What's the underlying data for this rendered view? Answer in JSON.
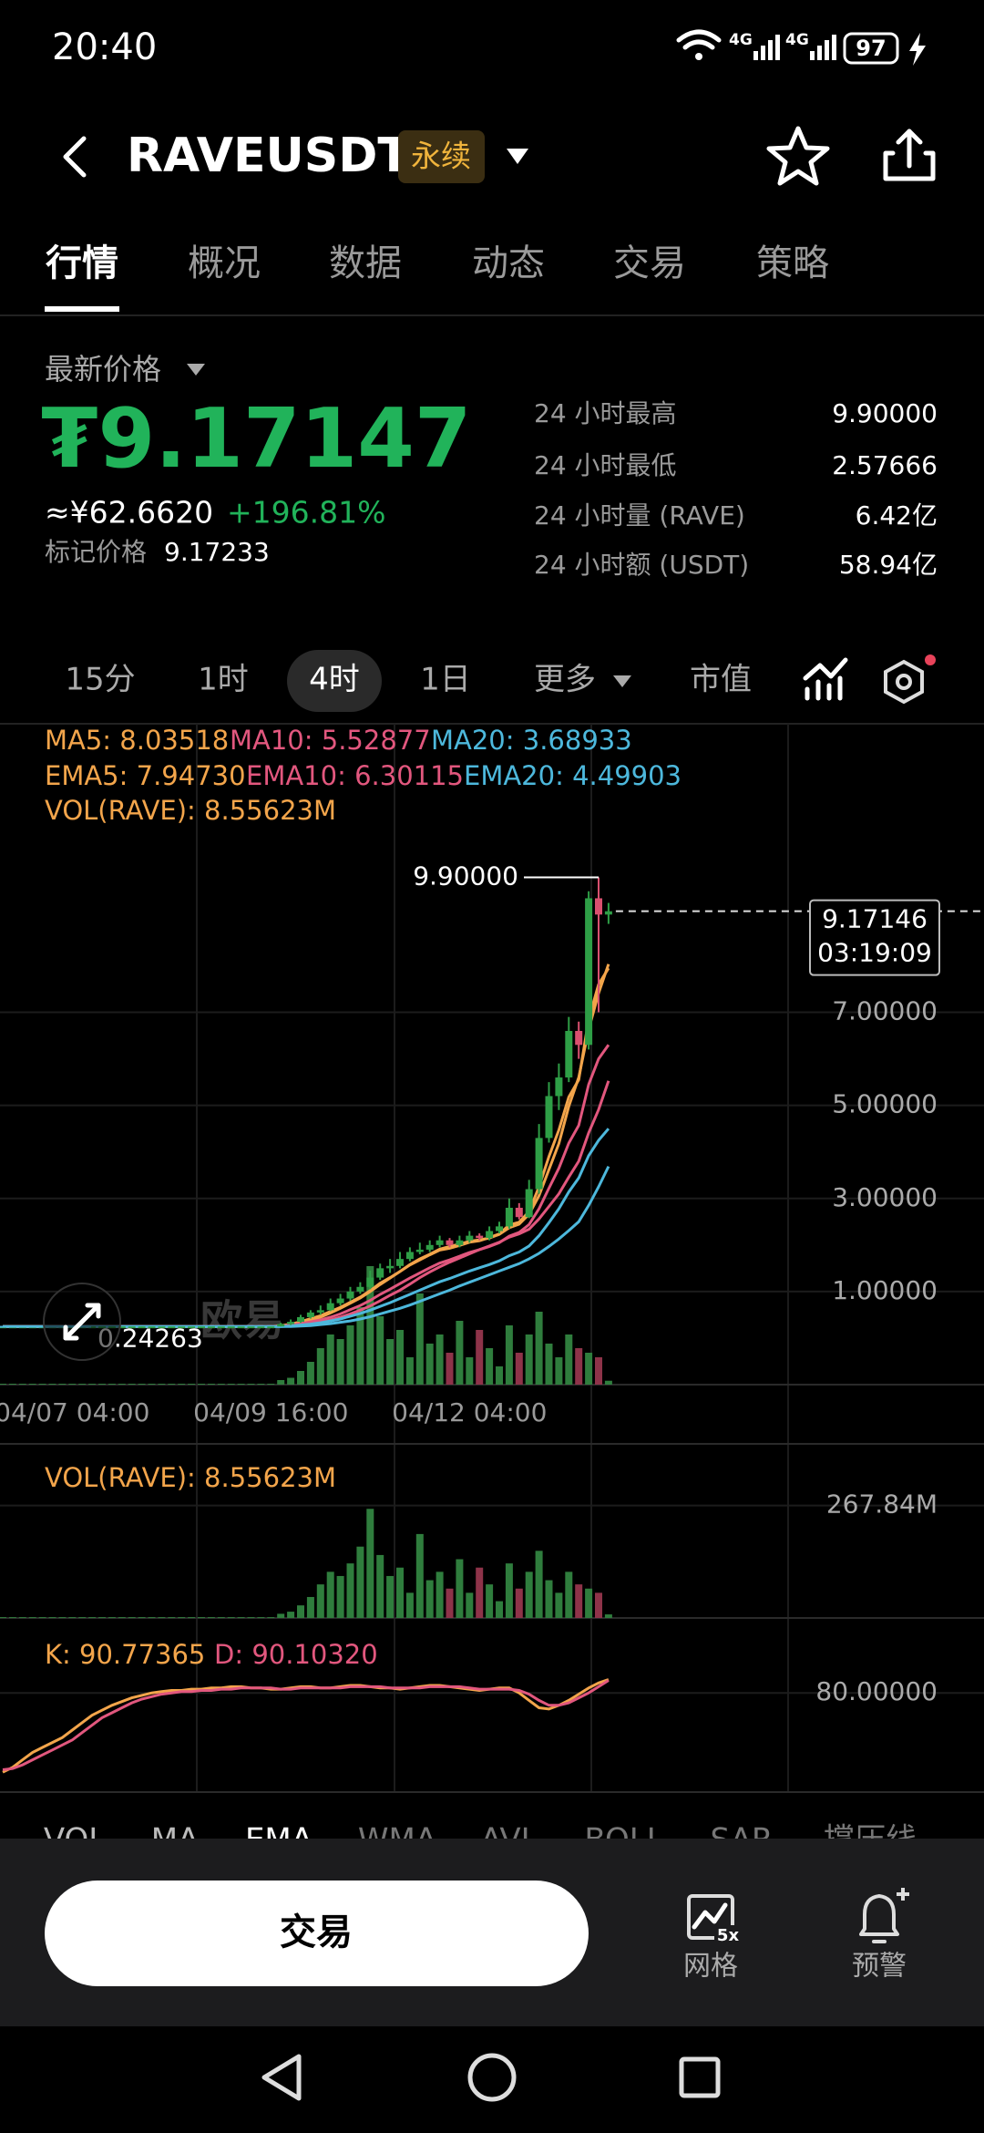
{
  "status_bar": {
    "time": "20:40",
    "network": [
      "4G",
      "4G"
    ],
    "battery": "97"
  },
  "header": {
    "symbol": "RAVEUSDT",
    "badge": "永续"
  },
  "tabs": [
    "行情",
    "概况",
    "数据",
    "动态",
    "交易",
    "策略"
  ],
  "price": {
    "label": "最新价格",
    "last": "₮9.17147",
    "cny": "≈¥62.6620",
    "change": "+196.81%",
    "mark_label": "标记价格",
    "mark": "9.17233"
  },
  "stats": [
    {
      "label": "24 小时最高",
      "value": "9.90000"
    },
    {
      "label": "24 小时最低",
      "value": "2.57666"
    },
    {
      "label": "24 小时量 (RAVE)",
      "value": "6.42亿"
    },
    {
      "label": "24 小时额 (USDT)",
      "value": "58.94亿"
    }
  ],
  "intervals": [
    "15分",
    "1时",
    "4时",
    "1日",
    "更多",
    "市值"
  ],
  "watermark": "欧易",
  "chart_data": [
    {
      "type": "candlestick",
      "up_color": "#2e9e46",
      "down_color": "#d9506f",
      "ylim": [
        -1,
        13.2
      ],
      "yticks": [
        {
          "value": 1,
          "label": "1.00000"
        },
        {
          "value": 3,
          "label": "3.00000"
        },
        {
          "value": 5,
          "label": "5.00000"
        },
        {
          "value": 7,
          "label": "7.00000"
        }
      ],
      "grid": true,
      "categories": [
        null,
        null,
        null,
        null,
        null,
        null,
        null,
        "04/07 04:00",
        null,
        null,
        null,
        null,
        null,
        null,
        null,
        null,
        null,
        null,
        null,
        null,
        null,
        null,
        null,
        null,
        null,
        null,
        null,
        "04/09 16:00",
        null,
        null,
        null,
        null,
        null,
        null,
        null,
        null,
        null,
        null,
        null,
        null,
        null,
        null,
        null,
        null,
        null,
        null,
        null,
        "04/12 04:00",
        null,
        null,
        null,
        null,
        null,
        null,
        null,
        null,
        null,
        null,
        null,
        null,
        null,
        null
      ],
      "ohlc": [
        [
          0.25,
          0.25,
          0.25,
          0.25
        ],
        [
          0.25,
          0.25,
          0.25,
          0.25
        ],
        [
          0.25,
          0.25,
          0.25,
          0.25
        ],
        [
          0.25,
          0.25,
          0.25,
          0.25
        ],
        [
          0.25,
          0.25,
          0.25,
          0.25
        ],
        [
          0.25,
          0.25,
          0.25,
          0.25
        ],
        [
          0.25,
          0.25,
          0.25,
          0.25
        ],
        [
          0.25,
          0.25,
          0.25,
          0.25
        ],
        [
          0.25,
          0.25,
          0.25,
          0.25
        ],
        [
          0.25,
          0.25,
          0.25,
          0.25
        ],
        [
          0.25,
          0.25,
          0.25,
          0.25
        ],
        [
          0.25,
          0.25,
          0.25,
          0.25
        ],
        [
          0.25,
          0.25,
          0.25,
          0.25
        ],
        [
          0.25,
          0.25,
          0.25,
          0.25
        ],
        [
          0.25,
          0.25,
          0.24263,
          0.25
        ],
        [
          0.25,
          0.25,
          0.25,
          0.25
        ],
        [
          0.25,
          0.25,
          0.25,
          0.25
        ],
        [
          0.25,
          0.25,
          0.25,
          0.25
        ],
        [
          0.25,
          0.25,
          0.25,
          0.25
        ],
        [
          0.25,
          0.25,
          0.25,
          0.25
        ],
        [
          0.25,
          0.25,
          0.25,
          0.25
        ],
        [
          0.25,
          0.25,
          0.25,
          0.25
        ],
        [
          0.25,
          0.25,
          0.25,
          0.25
        ],
        [
          0.25,
          0.25,
          0.25,
          0.25
        ],
        [
          0.25,
          0.25,
          0.25,
          0.25
        ],
        [
          0.25,
          0.25,
          0.25,
          0.25
        ],
        [
          0.25,
          0.25,
          0.25,
          0.25
        ],
        [
          0.25,
          0.25,
          0.25,
          0.25
        ],
        [
          0.25,
          0.33,
          0.25,
          0.3
        ],
        [
          0.3,
          0.4,
          0.28,
          0.35
        ],
        [
          0.35,
          0.5,
          0.33,
          0.45
        ],
        [
          0.45,
          0.6,
          0.42,
          0.55
        ],
        [
          0.55,
          0.7,
          0.5,
          0.6
        ],
        [
          0.6,
          0.85,
          0.58,
          0.75
        ],
        [
          0.75,
          0.95,
          0.7,
          0.85
        ],
        [
          0.85,
          1.1,
          0.8,
          1.0
        ],
        [
          1.0,
          1.2,
          0.95,
          1.1
        ],
        [
          1.1,
          1.45,
          1.05,
          1.3
        ],
        [
          1.3,
          1.6,
          1.25,
          1.5
        ],
        [
          1.5,
          1.7,
          1.4,
          1.55
        ],
        [
          1.55,
          1.85,
          1.5,
          1.7
        ],
        [
          1.7,
          1.95,
          1.65,
          1.85
        ],
        [
          1.85,
          2.05,
          1.8,
          1.9
        ],
        [
          1.9,
          2.1,
          1.85,
          2.0
        ],
        [
          2.0,
          2.2,
          1.95,
          2.1
        ],
        [
          2.1,
          2.15,
          1.95,
          2.0
        ],
        [
          2.0,
          2.2,
          1.95,
          2.1
        ],
        [
          2.1,
          2.3,
          2.05,
          2.2
        ],
        [
          2.2,
          2.25,
          2.1,
          2.15
        ],
        [
          2.15,
          2.4,
          2.1,
          2.3
        ],
        [
          2.3,
          2.5,
          2.25,
          2.4
        ],
        [
          2.4,
          3.0,
          2.35,
          2.8
        ],
        [
          2.8,
          2.9,
          2.55,
          2.6
        ],
        [
          2.6,
          3.4,
          2.57666,
          3.2
        ],
        [
          3.2,
          4.6,
          3.1,
          4.3
        ],
        [
          4.3,
          5.5,
          4.2,
          5.2
        ],
        [
          5.2,
          5.9,
          4.9,
          5.6
        ],
        [
          5.6,
          6.9,
          5.5,
          6.6
        ],
        [
          6.6,
          6.8,
          6.0,
          6.3
        ],
        [
          6.3,
          9.6,
          6.2,
          9.45
        ],
        [
          9.45,
          9.9,
          7.0,
          9.1
        ],
        [
          9.1,
          9.35,
          8.9,
          9.17146
        ]
      ],
      "series": [
        {
          "name": "MA5: 8.03518",
          "color": "#f3a54b",
          "values": [
            0.25,
            0.25,
            0.25,
            0.25,
            0.25,
            0.25,
            0.25,
            0.25,
            0.25,
            0.25,
            0.25,
            0.25,
            0.25,
            0.25,
            0.25,
            0.25,
            0.25,
            0.25,
            0.25,
            0.25,
            0.25,
            0.25,
            0.25,
            0.25,
            0.25,
            0.25,
            0.25,
            0.25,
            0.26,
            0.28,
            0.32,
            0.38,
            0.45,
            0.54,
            0.64,
            0.75,
            0.86,
            1.0,
            1.15,
            1.29,
            1.43,
            1.58,
            1.7,
            1.8,
            1.91,
            1.97,
            2.02,
            2.08,
            2.11,
            2.15,
            2.23,
            2.37,
            2.45,
            2.66,
            3.06,
            3.62,
            4.18,
            4.98,
            5.6,
            6.63,
            7.41,
            8.03518
          ]
        },
        {
          "name": "MA10: 5.52877",
          "color": "#e2577e",
          "values": [
            0.25,
            0.25,
            0.25,
            0.25,
            0.25,
            0.25,
            0.25,
            0.25,
            0.25,
            0.25,
            0.25,
            0.25,
            0.25,
            0.25,
            0.25,
            0.25,
            0.25,
            0.25,
            0.25,
            0.25,
            0.25,
            0.25,
            0.25,
            0.25,
            0.25,
            0.25,
            0.25,
            0.25,
            0.26,
            0.26,
            0.28,
            0.31,
            0.34,
            0.39,
            0.45,
            0.52,
            0.6,
            0.69,
            0.8,
            0.92,
            1.03,
            1.16,
            1.3,
            1.42,
            1.53,
            1.63,
            1.72,
            1.81,
            1.9,
            1.98,
            2.06,
            2.17,
            2.24,
            2.34,
            2.56,
            2.83,
            3.1,
            3.46,
            3.8,
            4.41,
            4.91,
            5.52877
          ]
        },
        {
          "name": "MA20: 3.68933",
          "color": "#4db8dc",
          "values": [
            0.25,
            0.25,
            0.25,
            0.25,
            0.25,
            0.25,
            0.25,
            0.25,
            0.25,
            0.25,
            0.25,
            0.25,
            0.25,
            0.25,
            0.25,
            0.25,
            0.25,
            0.25,
            0.25,
            0.25,
            0.25,
            0.25,
            0.25,
            0.25,
            0.25,
            0.25,
            0.25,
            0.25,
            0.25,
            0.25,
            0.26,
            0.27,
            0.29,
            0.31,
            0.34,
            0.37,
            0.41,
            0.46,
            0.52,
            0.58,
            0.64,
            0.71,
            0.79,
            0.87,
            0.95,
            1.03,
            1.12,
            1.2,
            1.28,
            1.36,
            1.44,
            1.52,
            1.6,
            1.7,
            1.82,
            1.97,
            2.13,
            2.31,
            2.5,
            2.85,
            3.25,
            3.68933
          ]
        },
        {
          "name": "EMA5: 7.94730",
          "color": "#f3a54b",
          "values": [
            0.25,
            0.25,
            0.25,
            0.25,
            0.25,
            0.25,
            0.25,
            0.25,
            0.25,
            0.25,
            0.25,
            0.25,
            0.25,
            0.25,
            0.25,
            0.25,
            0.25,
            0.25,
            0.25,
            0.25,
            0.25,
            0.25,
            0.25,
            0.25,
            0.25,
            0.25,
            0.25,
            0.25,
            0.27,
            0.3,
            0.35,
            0.42,
            0.48,
            0.57,
            0.66,
            0.77,
            0.88,
            1.02,
            1.18,
            1.3,
            1.43,
            1.57,
            1.68,
            1.79,
            1.89,
            1.93,
            1.99,
            2.06,
            2.09,
            2.16,
            2.24,
            2.43,
            2.49,
            2.72,
            3.25,
            3.9,
            4.47,
            5.18,
            5.55,
            6.85,
            7.6,
            7.9473
          ]
        },
        {
          "name": "EMA10: 6.30115",
          "color": "#e2577e",
          "values": [
            0.25,
            0.25,
            0.25,
            0.25,
            0.25,
            0.25,
            0.25,
            0.25,
            0.25,
            0.25,
            0.25,
            0.25,
            0.25,
            0.25,
            0.25,
            0.25,
            0.25,
            0.25,
            0.25,
            0.25,
            0.25,
            0.25,
            0.25,
            0.25,
            0.25,
            0.25,
            0.25,
            0.25,
            0.26,
            0.28,
            0.31,
            0.35,
            0.39,
            0.45,
            0.52,
            0.61,
            0.7,
            0.81,
            0.94,
            1.05,
            1.17,
            1.29,
            1.4,
            1.51,
            1.61,
            1.68,
            1.76,
            1.84,
            1.9,
            1.97,
            2.05,
            2.19,
            2.27,
            2.44,
            2.78,
            3.22,
            3.65,
            4.19,
            4.57,
            5.45,
            6.0,
            6.30115
          ]
        },
        {
          "name": "EMA20: 4.49903",
          "color": "#4db8dc",
          "values": [
            0.25,
            0.25,
            0.25,
            0.25,
            0.25,
            0.25,
            0.25,
            0.25,
            0.25,
            0.25,
            0.25,
            0.25,
            0.25,
            0.25,
            0.25,
            0.25,
            0.25,
            0.25,
            0.25,
            0.25,
            0.25,
            0.25,
            0.25,
            0.25,
            0.25,
            0.25,
            0.25,
            0.25,
            0.25,
            0.26,
            0.28,
            0.3,
            0.33,
            0.37,
            0.41,
            0.47,
            0.53,
            0.6,
            0.68,
            0.76,
            0.85,
            0.94,
            1.03,
            1.12,
            1.21,
            1.28,
            1.36,
            1.44,
            1.51,
            1.58,
            1.66,
            1.77,
            1.85,
            1.98,
            2.2,
            2.48,
            2.78,
            3.14,
            3.44,
            3.92,
            4.25,
            4.49903
          ]
        }
      ],
      "high_label": {
        "value": 9.9,
        "label": "9.90000"
      },
      "low_label": {
        "value": 0.24263,
        "label": "0.24263"
      },
      "current_price": 9.17146,
      "countdown": "03:19:09"
    },
    {
      "type": "bar",
      "up_color": "#2f7d3d",
      "down_color": "#8e3349",
      "ylim": [
        0,
        380
      ],
      "yticks": [
        {
          "value": 267.84,
          "label": "267.84M"
        }
      ],
      "series": [
        {
          "name": "VOL(RAVE): 8.55623M",
          "color": "#f3a54b",
          "values": [
            2,
            2,
            2,
            2,
            2,
            2,
            2,
            2,
            2,
            2,
            2,
            2,
            2,
            2,
            2,
            2,
            2,
            2,
            2,
            2,
            2,
            2,
            2,
            2,
            2,
            2,
            2,
            2,
            10,
            15,
            30,
            50,
            80,
            110,
            100,
            130,
            170,
            260,
            150,
            100,
            120,
            60,
            200,
            90,
            110,
            70,
            140,
            60,
            120,
            80,
            40,
            130,
            70,
            110,
            160,
            90,
            60,
            110,
            80,
            70,
            60,
            8.55623
          ]
        }
      ]
    },
    {
      "type": "line",
      "ylim": [
        0,
        100
      ],
      "yticks": [
        {
          "value": 80,
          "label": "80.00000"
        }
      ],
      "series": [
        {
          "name": "K: 90.77365",
          "color": "#f3a54b",
          "values": [
            16,
            20,
            26,
            32,
            36,
            40,
            44,
            50,
            56,
            62,
            66,
            70,
            73,
            76,
            78,
            80,
            81,
            82,
            82,
            83,
            83,
            84,
            84,
            85,
            85,
            84,
            84,
            83,
            83,
            84,
            85,
            85,
            84,
            84,
            85,
            86,
            86,
            85,
            84,
            84,
            83,
            84,
            85,
            86,
            86,
            85,
            84,
            83,
            82,
            83,
            84,
            84,
            80,
            74,
            68,
            67,
            70,
            74,
            79,
            84,
            88,
            90.77365
          ]
        },
        {
          "name": "D: 90.10320",
          "color": "#e2577e",
          "values": [
            18,
            19,
            22,
            26,
            30,
            34,
            38,
            42,
            48,
            54,
            60,
            64,
            68,
            72,
            75,
            77,
            79,
            80,
            81,
            81,
            82,
            82,
            83,
            83,
            84,
            84,
            84,
            84,
            83,
            83,
            84,
            84,
            84,
            84,
            84,
            85,
            85,
            85,
            85,
            84,
            84,
            84,
            84,
            85,
            85,
            85,
            85,
            84,
            83,
            83,
            83,
            83,
            82,
            79,
            74,
            70,
            70,
            72,
            76,
            80,
            85,
            90.1032
          ]
        }
      ]
    }
  ],
  "indicator_tabs": [
    "VOL",
    "MA",
    "EMA",
    "WMA",
    "AVL",
    "BOLL",
    "SAR",
    "撑压线"
  ],
  "bottom_bar": {
    "trade": "交易",
    "grid": "网格",
    "grid_badge": "5x",
    "alert": "预警"
  }
}
